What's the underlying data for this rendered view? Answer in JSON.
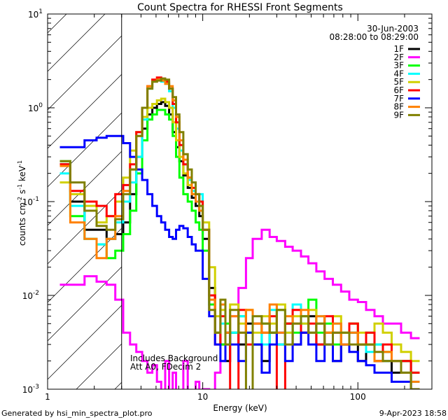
{
  "chart_data": {
    "type": "line",
    "title": "Count Spectra for RHESSI Front Segments",
    "xlabel": "Energy (keV)",
    "ylabel": "counts cm",
    "ylabel_parts": [
      "counts cm",
      "-2",
      " s",
      "-1",
      " keV",
      "-1"
    ],
    "xscale": "log",
    "yscale": "log",
    "xlim": [
      1,
      300
    ],
    "ylim": [
      0.001,
      10
    ],
    "xticks": [
      {
        "v": 1,
        "label": "1"
      },
      {
        "v": 10,
        "label": "10"
      },
      {
        "v": 100,
        "label": "100"
      }
    ],
    "yticks": [
      {
        "v": 10,
        "base": "10",
        "exp": "1"
      },
      {
        "v": 1,
        "base": "10",
        "exp": "0"
      },
      {
        "v": 0.1,
        "base": "10",
        "exp": "-1"
      },
      {
        "v": 0.01,
        "base": "10",
        "exp": "-2"
      },
      {
        "v": 0.001,
        "base": "10",
        "exp": "-3"
      }
    ],
    "hatched_region_kev": [
      1,
      3
    ],
    "date": "30-Jun-2003",
    "time_range": "08:28:00 to 08:29:00",
    "annotations": [
      "Includes Background",
      "Att A0, FDecim 2"
    ],
    "energy_edges": [
      1.2,
      1.4,
      1.73,
      2.07,
      2.4,
      2.73,
      3.07,
      3.4,
      3.73,
      4.07,
      4.4,
      4.73,
      5.07,
      5.4,
      5.73,
      6.07,
      6.4,
      6.73,
      7.07,
      7.5,
      8,
      8.5,
      9,
      9.5,
      10,
      11,
      12,
      13,
      14,
      15,
      17,
      19,
      21,
      24,
      27,
      30,
      34,
      38,
      43,
      48,
      54,
      61,
      69,
      78,
      88,
      100,
      113,
      128,
      145,
      165,
      190,
      220,
      250
    ],
    "series": [
      {
        "name": "1F",
        "color": "#000000",
        "values": [
          0.25,
          0.1,
          0.05,
          0.05,
          0.04,
          0.045,
          0.06,
          0.12,
          0.3,
          0.6,
          0.85,
          1.0,
          1.1,
          1.15,
          1.05,
          0.85,
          0.55,
          0.38,
          0.27,
          0.19,
          0.14,
          0.11,
          0.09,
          0.07,
          0.04,
          0.012,
          0.004,
          0.003,
          0.002,
          0.004,
          0.003,
          0.005,
          0.003,
          0.002,
          0.004,
          0.003,
          0.005,
          0.003,
          0.004,
          0.006,
          0.003,
          0.004,
          0.002,
          0.003,
          0.004,
          0.002,
          0.003,
          0.002,
          0.002,
          0.0015,
          0.002,
          0.001
        ]
      },
      {
        "name": "2F",
        "color": "#ff00ff",
        "values": [
          0.013,
          0.013,
          0.016,
          0.014,
          0.013,
          0.009,
          0.004,
          0.003,
          0.0025,
          0.002,
          0.0015,
          0.0018,
          0.0012,
          0.0009,
          0.002,
          0.0008,
          0.0015,
          0.0009,
          0.0007,
          0.002,
          0.0009,
          0.0008,
          0.0012,
          0.0008,
          0.001,
          0.0007,
          0.0015,
          0.002,
          0.003,
          0.006,
          0.012,
          0.025,
          0.04,
          0.05,
          0.042,
          0.038,
          0.033,
          0.03,
          0.026,
          0.022,
          0.018,
          0.015,
          0.013,
          0.011,
          0.009,
          0.0085,
          0.007,
          0.006,
          0.005,
          0.005,
          0.004,
          0.0035
        ]
      },
      {
        "name": "3F",
        "color": "#00ff00",
        "values": [
          0.27,
          0.07,
          0.04,
          0.035,
          0.025,
          0.03,
          0.045,
          0.08,
          0.2,
          0.45,
          0.75,
          0.85,
          0.95,
          0.95,
          0.85,
          0.75,
          0.5,
          0.3,
          0.18,
          0.12,
          0.1,
          0.08,
          0.06,
          0.05,
          0.03,
          0.008,
          0.004,
          0.003,
          0.005,
          0.004,
          0.006,
          0.004,
          0.003,
          0.005,
          0.004,
          0.007,
          0.005,
          0.004,
          0.006,
          0.009,
          0.004,
          0.005,
          0.003,
          0.004,
          0.005,
          0.003,
          0.004,
          0.003,
          0.0025,
          0.002,
          0.002,
          0.0015
        ]
      },
      {
        "name": "4F",
        "color": "#00ffff",
        "values": [
          0.2,
          0.09,
          0.04,
          0.035,
          0.04,
          0.06,
          0.1,
          0.16,
          0.3,
          0.75,
          1.6,
          1.9,
          2.0,
          1.9,
          1.8,
          1.5,
          1.0,
          0.6,
          0.35,
          0.25,
          0.17,
          0.13,
          0.1,
          0.12,
          0.05,
          0.01,
          0.004,
          0.005,
          0.003,
          0.004,
          0.006,
          0.004,
          0.005,
          0.003,
          0.007,
          0.003,
          0.004,
          0.008,
          0.005,
          0.004,
          0.006,
          0.003,
          0.005,
          0.003,
          0.004,
          0.003,
          0.0025,
          0.003,
          0.002,
          0.002,
          0.0015,
          0.0012
        ]
      },
      {
        "name": "5F",
        "color": "#d0d000",
        "values": [
          0.16,
          0.12,
          0.09,
          0.06,
          0.07,
          0.1,
          0.18,
          0.35,
          0.55,
          0.8,
          1.0,
          1.1,
          1.2,
          1.25,
          1.15,
          1.0,
          0.7,
          0.45,
          0.3,
          0.2,
          0.15,
          0.12,
          0.1,
          0.1,
          0.06,
          0.02,
          0.006,
          0.007,
          0.004,
          0.008,
          0.005,
          0.007,
          0.004,
          0.006,
          0.005,
          0.008,
          0.004,
          0.006,
          0.005,
          0.007,
          0.005,
          0.004,
          0.006,
          0.004,
          0.005,
          0.004,
          0.003,
          0.005,
          0.004,
          0.003,
          0.0025,
          0.002
        ]
      },
      {
        "name": "6F",
        "color": "#ff0000",
        "values": [
          0.25,
          0.13,
          0.1,
          0.09,
          0.07,
          0.12,
          0.15,
          0.25,
          0.55,
          1.0,
          1.7,
          2.0,
          2.1,
          2.05,
          1.9,
          1.6,
          1.1,
          0.7,
          0.4,
          0.25,
          0.18,
          0.14,
          0.12,
          0.1,
          0.05,
          0.01,
          0.003,
          0.006,
          0.004,
          0.0008,
          0.007,
          0.003,
          0.005,
          0.004,
          0.006,
          0.0008,
          0.005,
          0.007,
          0.004,
          0.005,
          0.003,
          0.006,
          0.004,
          0.003,
          0.005,
          0.003,
          0.004,
          0.002,
          0.003,
          0.002,
          0.002,
          0.0015
        ]
      },
      {
        "name": "7F",
        "color": "#0000ff",
        "values": [
          0.38,
          0.38,
          0.45,
          0.48,
          0.5,
          0.5,
          0.42,
          0.3,
          0.22,
          0.17,
          0.12,
          0.09,
          0.07,
          0.06,
          0.05,
          0.042,
          0.04,
          0.05,
          0.055,
          0.052,
          0.042,
          0.035,
          0.03,
          0.03,
          0.015,
          0.006,
          0.003,
          0.002,
          0.004,
          0.003,
          0.002,
          0.004,
          0.003,
          0.0015,
          0.003,
          0.004,
          0.002,
          0.003,
          0.004,
          0.003,
          0.002,
          0.003,
          0.002,
          0.003,
          0.0025,
          0.002,
          0.0018,
          0.0015,
          0.0015,
          0.0012,
          0.0012,
          0.001
        ]
      },
      {
        "name": "8F",
        "color": "#ff8000",
        "values": [
          0.24,
          0.06,
          0.04,
          0.025,
          0.04,
          0.07,
          0.13,
          0.22,
          0.5,
          1.0,
          1.7,
          1.9,
          2.0,
          1.95,
          1.8,
          1.7,
          1.2,
          0.8,
          0.45,
          0.28,
          0.18,
          0.12,
          0.1,
          0.08,
          0.05,
          0.009,
          0.004,
          0.008,
          0.004,
          0.006,
          0.004,
          0.007,
          0.005,
          0.004,
          0.008,
          0.004,
          0.006,
          0.005,
          0.007,
          0.004,
          0.006,
          0.004,
          0.005,
          0.003,
          0.004,
          0.003,
          0.003,
          0.002,
          0.0025,
          0.002,
          0.0015,
          0.0012
        ]
      },
      {
        "name": "9F",
        "color": "#808000",
        "values": [
          0.27,
          0.16,
          0.08,
          0.055,
          0.05,
          0.065,
          0.12,
          0.22,
          0.5,
          1.0,
          1.6,
          1.9,
          1.95,
          2.05,
          2.0,
          1.6,
          1.3,
          0.85,
          0.55,
          0.32,
          0.22,
          0.16,
          0.12,
          0.09,
          0.05,
          0.007,
          0.004,
          0.009,
          0.003,
          0.007,
          0.004,
          0.0008,
          0.006,
          0.005,
          0.004,
          0.007,
          0.003,
          0.005,
          0.006,
          0.004,
          0.005,
          0.003,
          0.004,
          0.004,
          0.003,
          0.003,
          0.003,
          0.0025,
          0.002,
          0.002,
          0.0015,
          0.001
        ]
      }
    ]
  },
  "footer": {
    "generated_by": "Generated by hsi_min_spectra_plot.pro",
    "timestamp": "9-Apr-2023 18:58"
  }
}
